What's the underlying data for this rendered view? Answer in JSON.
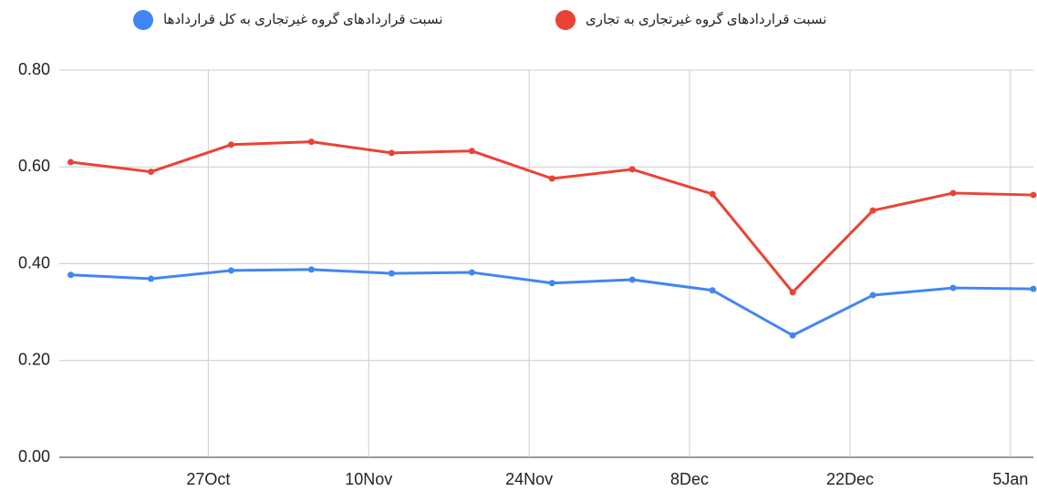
{
  "chart_data": {
    "type": "line",
    "x": [
      "15Oct",
      "22Oct",
      "29Oct",
      "5Nov",
      "12Nov",
      "19Nov",
      "26Nov",
      "3Dec",
      "10Dec",
      "17Dec",
      "24Dec",
      "31Dec",
      "7Jan"
    ],
    "series": [
      {
        "name": "نسبت قراردادهای گروه غیرتجاری به کل قراردادها",
        "color": "#4285f4",
        "values": [
          0.377,
          0.369,
          0.386,
          0.388,
          0.38,
          0.382,
          0.36,
          0.367,
          0.345,
          0.252,
          0.335,
          0.35,
          0.348
        ]
      },
      {
        "name": "نسبت قراردادهای گروه غیرتجاری به تجاری",
        "color": "#ea4335",
        "values": [
          0.61,
          0.59,
          0.646,
          0.652,
          0.629,
          0.633,
          0.576,
          0.595,
          0.544,
          0.341,
          0.51,
          0.546,
          0.542
        ]
      }
    ],
    "xlim": [
      "14Oct",
      "7Jan"
    ],
    "xticks": [
      "27Oct",
      "10Nov",
      "24Nov",
      "8Dec",
      "22Dec",
      "5Jan"
    ],
    "ylim": [
      0,
      0.8
    ],
    "yticks": [
      {
        "value": 0,
        "label": "0.00"
      },
      {
        "value": 0.2,
        "label": "0.20"
      },
      {
        "value": 0.4,
        "label": "0.40"
      },
      {
        "value": 0.6,
        "label": "0.60"
      },
      {
        "value": 0.8,
        "label": "0.80"
      }
    ],
    "grid": true,
    "legend": "top"
  }
}
